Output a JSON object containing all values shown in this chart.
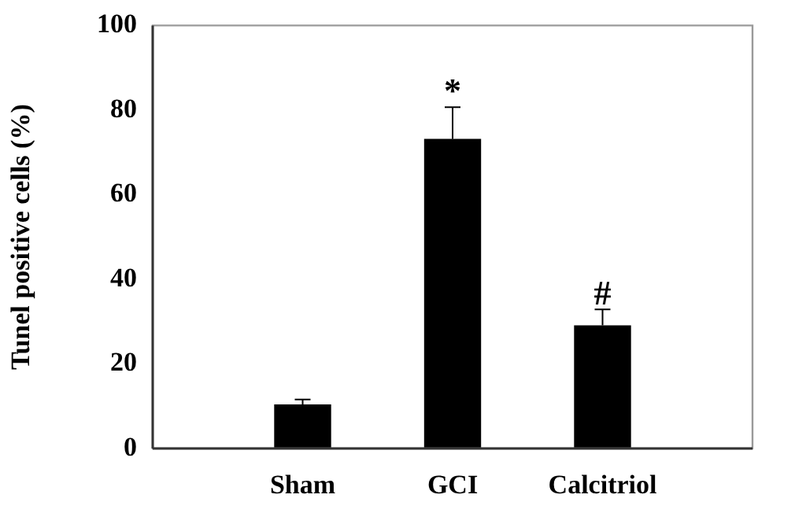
{
  "chart_data": {
    "type": "bar",
    "ylabel": "Tunel positive cells (%)",
    "categories": [
      "Sham",
      "GCI",
      "Calcitriol"
    ],
    "values": [
      10.4,
      73.2,
      29.1
    ],
    "color": "#000000",
    "errors": [
      1.2,
      7.5,
      3.8
    ],
    "ylim": [
      0,
      100
    ],
    "yticks": [
      0,
      20,
      40,
      60,
      80,
      100
    ],
    "grid": false,
    "legend": false,
    "annotations": [
      {
        "text": "*",
        "x": "GCI",
        "y": 80.7
      },
      {
        "text": "#",
        "x": "Calcitriol",
        "y": 32.9
      }
    ]
  }
}
